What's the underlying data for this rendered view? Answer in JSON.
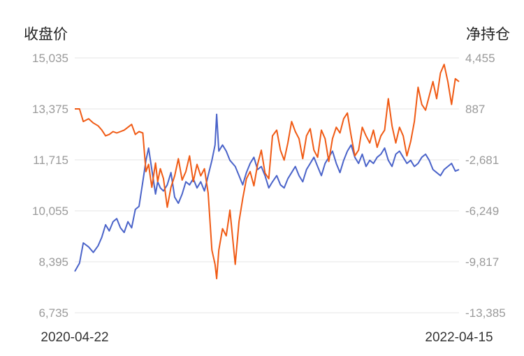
{
  "chart_data": {
    "type": "line",
    "title": "",
    "y_left_label": "收盘价",
    "y_right_label": "净持仓",
    "x_start_label": "2020-04-22",
    "x_end_label": "2022-04-15",
    "x_range": [
      "2020-04-22",
      "2022-04-15"
    ],
    "y_left_ticks": [
      "15,035",
      "13,375",
      "11,715",
      "10,055",
      "8,395",
      "6,735"
    ],
    "y_right_ticks": [
      "4,455",
      "887",
      "-2,681",
      "-6,249",
      "-9,817",
      "-13,385"
    ],
    "y_left_range": [
      6735,
      15035
    ],
    "y_right_range": [
      -13385,
      4455
    ],
    "grid": true,
    "legend": "none",
    "series": [
      {
        "axis": "left",
        "color": "#4a63c9",
        "points": [
          [
            "2020-04-22",
            8080
          ],
          [
            "2020-05-01",
            8350
          ],
          [
            "2020-05-08",
            9010
          ],
          [
            "2020-05-18",
            8880
          ],
          [
            "2020-05-27",
            8700
          ],
          [
            "2020-06-05",
            8920
          ],
          [
            "2020-06-12",
            9200
          ],
          [
            "2020-06-19",
            9600
          ],
          [
            "2020-06-26",
            9400
          ],
          [
            "2020-07-03",
            9700
          ],
          [
            "2020-07-10",
            9800
          ],
          [
            "2020-07-17",
            9500
          ],
          [
            "2020-07-24",
            9350
          ],
          [
            "2020-07-31",
            9700
          ],
          [
            "2020-08-07",
            9500
          ],
          [
            "2020-08-14",
            10100
          ],
          [
            "2020-08-21",
            10200
          ],
          [
            "2020-08-28",
            11000
          ],
          [
            "2020-09-03",
            11700
          ],
          [
            "2020-09-08",
            12100
          ],
          [
            "2020-09-14",
            11400
          ],
          [
            "2020-09-21",
            10600
          ],
          [
            "2020-09-25",
            11000
          ],
          [
            "2020-09-30",
            10800
          ],
          [
            "2020-10-06",
            10700
          ],
          [
            "2020-10-13",
            10900
          ],
          [
            "2020-10-20",
            11300
          ],
          [
            "2020-10-27",
            10500
          ],
          [
            "2020-11-03",
            10300
          ],
          [
            "2020-11-10",
            10600
          ],
          [
            "2020-11-17",
            11000
          ],
          [
            "2020-11-24",
            10900
          ],
          [
            "2020-12-01",
            11100
          ],
          [
            "2020-12-08",
            10800
          ],
          [
            "2020-12-15",
            11000
          ],
          [
            "2020-12-22",
            10700
          ],
          [
            "2020-12-29",
            11200
          ],
          [
            "2021-01-05",
            11700
          ],
          [
            "2021-01-11",
            12200
          ],
          [
            "2021-01-14",
            13200
          ],
          [
            "2021-01-18",
            12000
          ],
          [
            "2021-01-25",
            12200
          ],
          [
            "2021-02-01",
            12000
          ],
          [
            "2021-02-08",
            11700
          ],
          [
            "2021-02-18",
            11500
          ],
          [
            "2021-02-25",
            11200
          ],
          [
            "2021-03-04",
            10900
          ],
          [
            "2021-03-11",
            11300
          ],
          [
            "2021-03-18",
            11600
          ],
          [
            "2021-03-25",
            11800
          ],
          [
            "2021-04-01",
            11400
          ],
          [
            "2021-04-08",
            11500
          ],
          [
            "2021-04-15",
            11200
          ],
          [
            "2021-04-22",
            10800
          ],
          [
            "2021-04-29",
            11000
          ],
          [
            "2021-05-07",
            11200
          ],
          [
            "2021-05-14",
            10900
          ],
          [
            "2021-05-21",
            10800
          ],
          [
            "2021-05-28",
            11100
          ],
          [
            "2021-06-04",
            11300
          ],
          [
            "2021-06-11",
            11500
          ],
          [
            "2021-06-18",
            11200
          ],
          [
            "2021-06-25",
            11000
          ],
          [
            "2021-07-02",
            11400
          ],
          [
            "2021-07-09",
            11600
          ],
          [
            "2021-07-16",
            11800
          ],
          [
            "2021-07-23",
            11500
          ],
          [
            "2021-07-30",
            11200
          ],
          [
            "2021-08-06",
            11600
          ],
          [
            "2021-08-13",
            11800
          ],
          [
            "2021-08-20",
            12000
          ],
          [
            "2021-08-27",
            11600
          ],
          [
            "2021-09-03",
            11300
          ],
          [
            "2021-09-10",
            11700
          ],
          [
            "2021-09-17",
            12000
          ],
          [
            "2021-09-24",
            12200
          ],
          [
            "2021-10-01",
            11800
          ],
          [
            "2021-10-08",
            11600
          ],
          [
            "2021-10-15",
            11900
          ],
          [
            "2021-10-22",
            11500
          ],
          [
            "2021-10-29",
            11700
          ],
          [
            "2021-11-05",
            11600
          ],
          [
            "2021-11-12",
            11800
          ],
          [
            "2021-11-19",
            11900
          ],
          [
            "2021-11-26",
            12100
          ],
          [
            "2021-12-03",
            11700
          ],
          [
            "2021-12-10",
            11500
          ],
          [
            "2021-12-17",
            11900
          ],
          [
            "2021-12-24",
            12000
          ],
          [
            "2021-12-31",
            11800
          ],
          [
            "2022-01-07",
            11600
          ],
          [
            "2022-01-14",
            11700
          ],
          [
            "2022-01-21",
            11500
          ],
          [
            "2022-01-28",
            11600
          ],
          [
            "2022-02-04",
            11800
          ],
          [
            "2022-02-11",
            11900
          ],
          [
            "2022-02-18",
            11700
          ],
          [
            "2022-02-25",
            11400
          ],
          [
            "2022-03-04",
            11300
          ],
          [
            "2022-03-11",
            11200
          ],
          [
            "2022-03-18",
            11400
          ],
          [
            "2022-03-25",
            11500
          ],
          [
            "2022-04-01",
            11600
          ],
          [
            "2022-04-08",
            11350
          ],
          [
            "2022-04-15",
            11400
          ]
        ]
      },
      {
        "axis": "right",
        "color": "#f05a14",
        "points": [
          [
            "2020-04-22",
            887
          ],
          [
            "2020-05-01",
            887
          ],
          [
            "2020-05-08",
            0
          ],
          [
            "2020-05-18",
            200
          ],
          [
            "2020-05-27",
            -100
          ],
          [
            "2020-06-05",
            -300
          ],
          [
            "2020-06-12",
            -600
          ],
          [
            "2020-06-19",
            -1000
          ],
          [
            "2020-06-26",
            -900
          ],
          [
            "2020-07-03",
            -700
          ],
          [
            "2020-07-10",
            -800
          ],
          [
            "2020-07-17",
            -700
          ],
          [
            "2020-07-24",
            -600
          ],
          [
            "2020-07-31",
            -400
          ],
          [
            "2020-08-07",
            -200
          ],
          [
            "2020-08-14",
            -900
          ],
          [
            "2020-08-21",
            -700
          ],
          [
            "2020-08-28",
            -800
          ],
          [
            "2020-09-03",
            -3500
          ],
          [
            "2020-09-08",
            -3000
          ],
          [
            "2020-09-14",
            -4600
          ],
          [
            "2020-09-21",
            -2900
          ],
          [
            "2020-09-25",
            -4200
          ],
          [
            "2020-09-30",
            -3300
          ],
          [
            "2020-10-06",
            -4000
          ],
          [
            "2020-10-13",
            -6000
          ],
          [
            "2020-10-20",
            -4600
          ],
          [
            "2020-10-27",
            -3800
          ],
          [
            "2020-11-03",
            -2600
          ],
          [
            "2020-11-10",
            -4100
          ],
          [
            "2020-11-17",
            -3500
          ],
          [
            "2020-11-24",
            -2400
          ],
          [
            "2020-12-01",
            -4200
          ],
          [
            "2020-12-08",
            -3000
          ],
          [
            "2020-12-15",
            -3800
          ],
          [
            "2020-12-22",
            -3300
          ],
          [
            "2020-12-29",
            -5000
          ],
          [
            "2021-01-05",
            -9000
          ],
          [
            "2021-01-11",
            -10000
          ],
          [
            "2021-01-14",
            -11000
          ],
          [
            "2021-01-18",
            -9000
          ],
          [
            "2021-01-25",
            -7500
          ],
          [
            "2021-02-01",
            -8000
          ],
          [
            "2021-02-08",
            -6200
          ],
          [
            "2021-02-18",
            -10000
          ],
          [
            "2021-02-25",
            -7000
          ],
          [
            "2021-03-04",
            -5400
          ],
          [
            "2021-03-11",
            -4000
          ],
          [
            "2021-03-18",
            -3500
          ],
          [
            "2021-03-25",
            -4500
          ],
          [
            "2021-04-01",
            -3000
          ],
          [
            "2021-04-08",
            -2000
          ],
          [
            "2021-04-15",
            -3600
          ],
          [
            "2021-04-22",
            -4000
          ],
          [
            "2021-04-29",
            -1000
          ],
          [
            "2021-05-07",
            -600
          ],
          [
            "2021-05-14",
            -2000
          ],
          [
            "2021-05-21",
            -2700
          ],
          [
            "2021-05-28",
            -1500
          ],
          [
            "2021-06-04",
            0
          ],
          [
            "2021-06-11",
            -700
          ],
          [
            "2021-06-18",
            -1200
          ],
          [
            "2021-06-25",
            -2600
          ],
          [
            "2021-07-02",
            -1000
          ],
          [
            "2021-07-09",
            -500
          ],
          [
            "2021-07-16",
            -2000
          ],
          [
            "2021-07-23",
            -2500
          ],
          [
            "2021-07-30",
            -600
          ],
          [
            "2021-08-06",
            -1200
          ],
          [
            "2021-08-13",
            -2800
          ],
          [
            "2021-08-20",
            -1200
          ],
          [
            "2021-08-27",
            -400
          ],
          [
            "2021-09-03",
            -800
          ],
          [
            "2021-09-10",
            200
          ],
          [
            "2021-09-17",
            600
          ],
          [
            "2021-09-24",
            -1000
          ],
          [
            "2021-10-01",
            -2400
          ],
          [
            "2021-10-08",
            -2000
          ],
          [
            "2021-10-15",
            -400
          ],
          [
            "2021-10-22",
            -1000
          ],
          [
            "2021-10-29",
            -1500
          ],
          [
            "2021-11-05",
            -600
          ],
          [
            "2021-11-12",
            -1800
          ],
          [
            "2021-11-19",
            -1000
          ],
          [
            "2021-11-26",
            -600
          ],
          [
            "2021-12-03",
            1600
          ],
          [
            "2021-12-10",
            -300
          ],
          [
            "2021-12-17",
            -1500
          ],
          [
            "2021-12-24",
            -400
          ],
          [
            "2021-12-31",
            -1000
          ],
          [
            "2022-01-07",
            -2400
          ],
          [
            "2022-01-14",
            -1400
          ],
          [
            "2022-01-21",
            0
          ],
          [
            "2022-01-28",
            2400
          ],
          [
            "2022-02-04",
            1200
          ],
          [
            "2022-02-11",
            800
          ],
          [
            "2022-02-18",
            1800
          ],
          [
            "2022-02-25",
            2800
          ],
          [
            "2022-03-04",
            1600
          ],
          [
            "2022-03-11",
            3400
          ],
          [
            "2022-03-18",
            4000
          ],
          [
            "2022-03-25",
            2800
          ],
          [
            "2022-04-01",
            1200
          ],
          [
            "2022-04-08",
            3000
          ],
          [
            "2022-04-15",
            2800
          ]
        ]
      }
    ]
  }
}
